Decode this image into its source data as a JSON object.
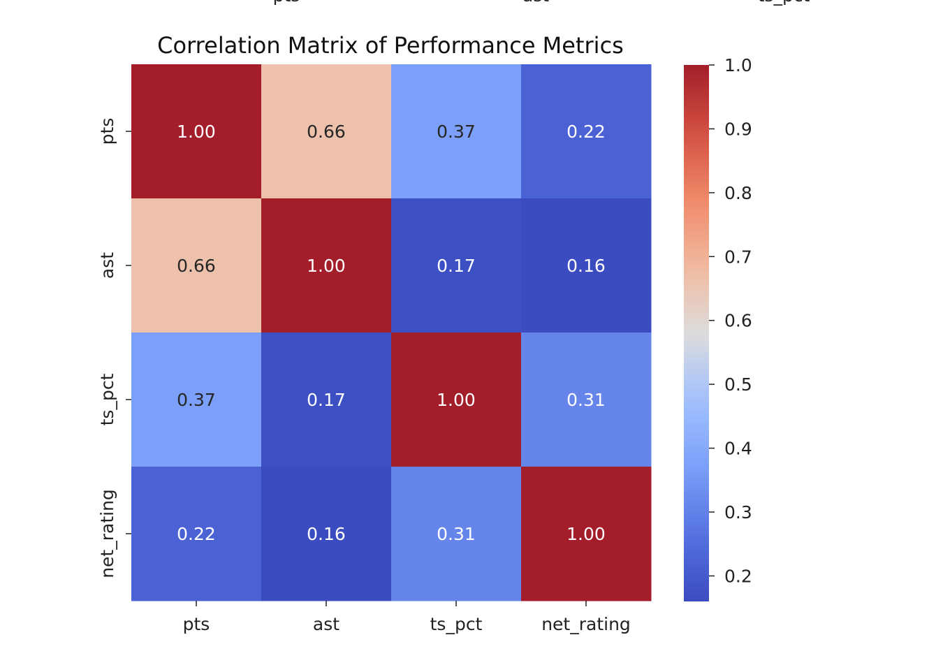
{
  "chart_data": {
    "type": "heatmap",
    "title": "Correlation Matrix of Performance Metrics",
    "x_labels": [
      "pts",
      "ast",
      "ts_pct",
      "net_rating"
    ],
    "y_labels": [
      "pts",
      "ast",
      "ts_pct",
      "net_rating"
    ],
    "top_clipped_labels": [
      "pts",
      "ast",
      "ts_pct"
    ],
    "values": [
      [
        1.0,
        0.66,
        0.37,
        0.22
      ],
      [
        0.66,
        1.0,
        0.17,
        0.16
      ],
      [
        0.37,
        0.17,
        1.0,
        0.31
      ],
      [
        0.22,
        0.16,
        0.31,
        1.0
      ]
    ],
    "value_labels": [
      [
        "1.00",
        "0.66",
        "0.37",
        "0.22"
      ],
      [
        "0.66",
        "1.00",
        "0.17",
        "0.16"
      ],
      [
        "0.37",
        "0.17",
        "1.00",
        "0.31"
      ],
      [
        "0.22",
        "0.16",
        "0.31",
        "1.00"
      ]
    ],
    "colormap": "coolwarm",
    "color_range": [
      0.16,
      1.0
    ],
    "colorbar_ticks": [
      {
        "value": 1.0,
        "label": "1.0"
      },
      {
        "value": 0.9,
        "label": "0.9"
      },
      {
        "value": 0.8,
        "label": "0.8"
      },
      {
        "value": 0.7,
        "label": "0.7"
      },
      {
        "value": 0.6,
        "label": "0.6"
      },
      {
        "value": 0.5,
        "label": "0.5"
      },
      {
        "value": 0.4,
        "label": "0.4"
      },
      {
        "value": 0.3,
        "label": "0.3"
      },
      {
        "value": 0.2,
        "label": "0.2"
      }
    ],
    "legend": "right"
  }
}
